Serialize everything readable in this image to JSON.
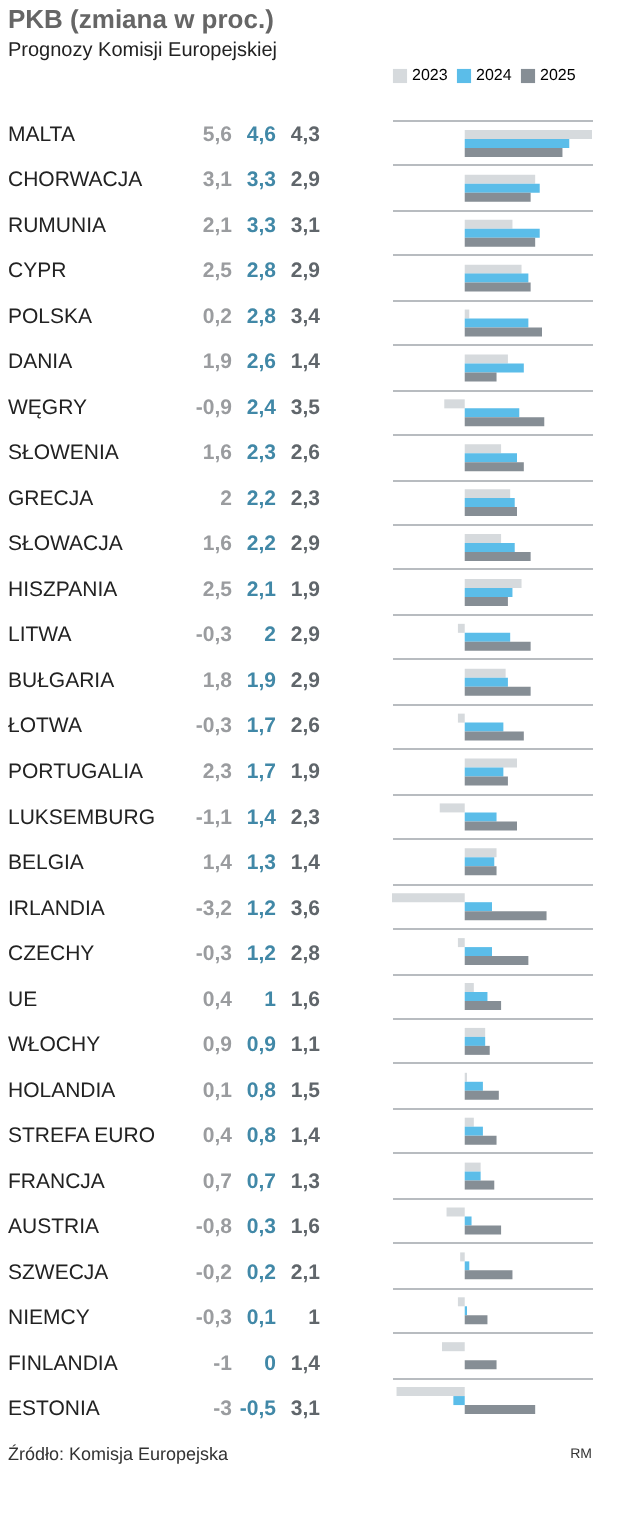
{
  "chart_data": {
    "type": "bar",
    "orientation": "horizontal",
    "title": "PKB (zmiana w proc.)",
    "subtitle": "Prognozy Komisji Europejskiej",
    "categories": [
      "MALTA",
      "CHORWACJA",
      "RUMUNIA",
      "CYPR",
      "POLSKA",
      "DANIA",
      "WĘGRY",
      "SŁOWENIA",
      "GRECJA",
      "SŁOWACJA",
      "HISZPANIA",
      "LITWA",
      "BUŁGARIA",
      "ŁOTWA",
      "PORTUGALIA",
      "LUKSEMBURG",
      "BELGIA",
      "IRLANDIA",
      "CZECHY",
      "UE",
      "WŁOCHY",
      "HOLANDIA",
      "STREFA EURO",
      "FRANCJA",
      "AUSTRIA",
      "SZWECJA",
      "NIEMCY",
      "FINLANDIA",
      "ESTONIA"
    ],
    "series": [
      {
        "name": "2023",
        "color": "#d6dadd",
        "values": [
          5.6,
          3.1,
          2.1,
          2.5,
          0.2,
          1.9,
          -0.9,
          1.6,
          2,
          1.6,
          2.5,
          -0.3,
          1.8,
          -0.3,
          2.3,
          -1.1,
          1.4,
          -3.2,
          -0.3,
          0.4,
          0.9,
          0.1,
          0.4,
          0.7,
          -0.8,
          -0.2,
          -0.3,
          -1,
          -3
        ],
        "value_labels": [
          "5,6",
          "3,1",
          "2,1",
          "2,5",
          "0,2",
          "1,9",
          "-0,9",
          "1,6",
          "2",
          "1,6",
          "2,5",
          "-0,3",
          "1,8",
          "-0,3",
          "2,3",
          "-1,1",
          "1,4",
          "-3,2",
          "-0,3",
          "0,4",
          "0,9",
          "0,1",
          "0,4",
          "0,7",
          "-0,8",
          "-0,2",
          "-0,3",
          "-1",
          "-3"
        ]
      },
      {
        "name": "2024",
        "color": "#5bbde9",
        "values": [
          4.6,
          3.3,
          3.3,
          2.8,
          2.8,
          2.6,
          2.4,
          2.3,
          2.2,
          2.2,
          2.1,
          2,
          1.9,
          1.7,
          1.7,
          1.4,
          1.3,
          1.2,
          1.2,
          1,
          0.9,
          0.8,
          0.8,
          0.7,
          0.3,
          0.2,
          0.1,
          0,
          -0.5
        ],
        "value_labels": [
          "4,6",
          "3,3",
          "3,3",
          "2,8",
          "2,8",
          "2,6",
          "2,4",
          "2,3",
          "2,2",
          "2,2",
          "2,1",
          "2",
          "1,9",
          "1,7",
          "1,7",
          "1,4",
          "1,3",
          "1,2",
          "1,2",
          "1",
          "0,9",
          "0,8",
          "0,8",
          "0,7",
          "0,3",
          "0,2",
          "0,1",
          "0",
          "-0,5"
        ]
      },
      {
        "name": "2025",
        "color": "#868e95",
        "values": [
          4.3,
          2.9,
          3.1,
          2.9,
          3.4,
          1.4,
          3.5,
          2.6,
          2.3,
          2.9,
          1.9,
          2.9,
          2.9,
          2.6,
          1.9,
          2.3,
          1.4,
          3.6,
          2.8,
          1.6,
          1.1,
          1.5,
          1.4,
          1.3,
          1.6,
          2.1,
          1,
          1.4,
          3.1
        ],
        "value_labels": [
          "4,3",
          "2,9",
          "3,1",
          "2,9",
          "3,4",
          "1,4",
          "3,5",
          "2,6",
          "2,3",
          "2,9",
          "1,9",
          "2,9",
          "2,9",
          "2,6",
          "1,9",
          "2,3",
          "1,4",
          "3,6",
          "2,8",
          "1,6",
          "1,1",
          "1,5",
          "1,4",
          "1,3",
          "1,6",
          "2,1",
          "1",
          "1,4",
          "3,1"
        ]
      }
    ],
    "legend": "top right",
    "grid": "y",
    "tick_labels": false,
    "annotations": [
      "Źródło: Komisja Europejska",
      "RM"
    ]
  }
}
